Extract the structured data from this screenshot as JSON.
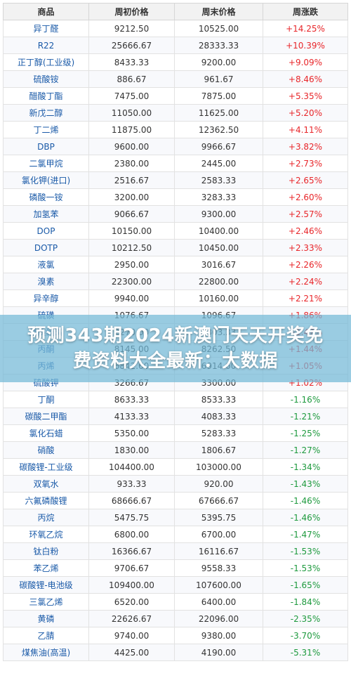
{
  "headers": [
    "商品",
    "周初价格",
    "周末价格",
    "周涨跌"
  ],
  "rows": [
    {
      "name": "异丁醛",
      "start": "9212.50",
      "end": "10525.00",
      "change": "+14.25%"
    },
    {
      "name": "R22",
      "start": "25666.67",
      "end": "28333.33",
      "change": "+10.39%"
    },
    {
      "name": "正丁醇(工业级)",
      "start": "8433.33",
      "end": "9200.00",
      "change": "+9.09%"
    },
    {
      "name": "硫酸铵",
      "start": "886.67",
      "end": "961.67",
      "change": "+8.46%"
    },
    {
      "name": "醋酸丁酯",
      "start": "7475.00",
      "end": "7875.00",
      "change": "+5.35%"
    },
    {
      "name": "新戊二醇",
      "start": "11050.00",
      "end": "11625.00",
      "change": "+5.20%"
    },
    {
      "name": "丁二烯",
      "start": "11875.00",
      "end": "12362.50",
      "change": "+4.11%"
    },
    {
      "name": "DBP",
      "start": "9600.00",
      "end": "9966.67",
      "change": "+3.82%"
    },
    {
      "name": "二氯甲烷",
      "start": "2380.00",
      "end": "2445.00",
      "change": "+2.73%"
    },
    {
      "name": "氯化钾(进口)",
      "start": "2516.67",
      "end": "2583.33",
      "change": "+2.65%"
    },
    {
      "name": "磷酸一铵",
      "start": "3200.00",
      "end": "3283.33",
      "change": "+2.60%"
    },
    {
      "name": "加氢苯",
      "start": "9066.67",
      "end": "9300.00",
      "change": "+2.57%"
    },
    {
      "name": "DOP",
      "start": "10150.00",
      "end": "10400.00",
      "change": "+2.46%"
    },
    {
      "name": "DOTP",
      "start": "10212.50",
      "end": "10450.00",
      "change": "+2.33%"
    },
    {
      "name": "液氯",
      "start": "2950.00",
      "end": "3016.67",
      "change": "+2.26%"
    },
    {
      "name": "溴素",
      "start": "22300.00",
      "end": "22800.00",
      "change": "+2.24%"
    },
    {
      "name": "异辛醇",
      "start": "9940.00",
      "end": "10160.00",
      "change": "+2.21%"
    },
    {
      "name": "硫磺",
      "start": "1076.67",
      "end": "1096.67",
      "change": "+1.86%"
    },
    {
      "name": "重质纯碱",
      "start": "2270.00",
      "end": "2303.33",
      "change": "+1.47%"
    },
    {
      "name": "丙酮",
      "start": "8145.00",
      "end": "8262.50",
      "change": "+1.44%"
    },
    {
      "name": "丙烯",
      "start": "6842.60",
      "end": "6914.60",
      "change": "+1.05%"
    },
    {
      "name": "硫酸钾",
      "start": "3266.67",
      "end": "3300.00",
      "change": "+1.02%"
    },
    {
      "name": "丁酮",
      "start": "8633.33",
      "end": "8533.33",
      "change": "-1.16%"
    },
    {
      "name": "碳酸二甲酯",
      "start": "4133.33",
      "end": "4083.33",
      "change": "-1.21%"
    },
    {
      "name": "氯化石蜡",
      "start": "5350.00",
      "end": "5283.33",
      "change": "-1.25%"
    },
    {
      "name": "硝酸",
      "start": "1830.00",
      "end": "1806.67",
      "change": "-1.27%"
    },
    {
      "name": "碳酸锂-工业级",
      "start": "104400.00",
      "end": "103000.00",
      "change": "-1.34%"
    },
    {
      "name": "双氧水",
      "start": "933.33",
      "end": "920.00",
      "change": "-1.43%"
    },
    {
      "name": "六氟磷酸锂",
      "start": "68666.67",
      "end": "67666.67",
      "change": "-1.46%"
    },
    {
      "name": "丙烷",
      "start": "5475.75",
      "end": "5395.75",
      "change": "-1.46%"
    },
    {
      "name": "环氧乙烷",
      "start": "6800.00",
      "end": "6700.00",
      "change": "-1.47%"
    },
    {
      "name": "钛白粉",
      "start": "16366.67",
      "end": "16116.67",
      "change": "-1.53%"
    },
    {
      "name": "苯乙烯",
      "start": "9706.67",
      "end": "9558.33",
      "change": "-1.53%"
    },
    {
      "name": "碳酸锂-电池级",
      "start": "109400.00",
      "end": "107600.00",
      "change": "-1.65%"
    },
    {
      "name": "三氯乙烯",
      "start": "6520.00",
      "end": "6400.00",
      "change": "-1.84%"
    },
    {
      "name": "黄磷",
      "start": "22626.67",
      "end": "22096.00",
      "change": "-2.35%"
    },
    {
      "name": "乙腈",
      "start": "9740.00",
      "end": "9380.00",
      "change": "-3.70%"
    },
    {
      "name": "煤焦油(高温)",
      "start": "4425.00",
      "end": "4190.00",
      "change": "-5.31%"
    }
  ],
  "banner": "预测343期2024新澳门天天开奖免费资料大全最新：大数据",
  "colors": {
    "up": "#e8262a",
    "down": "#1e9a3e",
    "name": "#1a5aa8",
    "banner": "#73b9d7"
  }
}
